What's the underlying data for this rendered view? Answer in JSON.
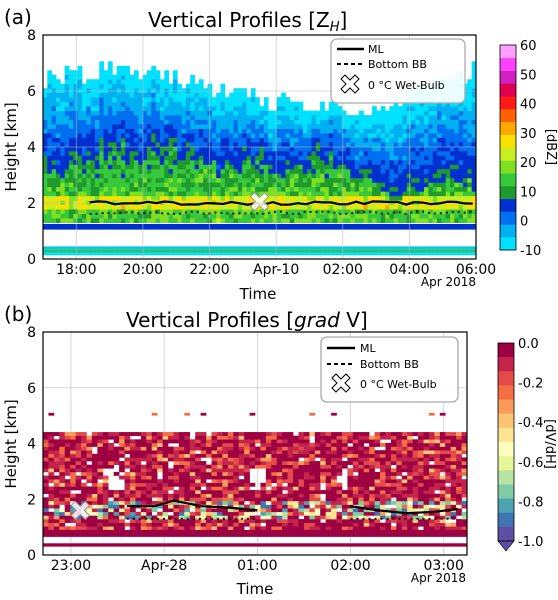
{
  "chart_data": [
    {
      "type": "heatmap",
      "panel_label": "(a)",
      "title_main": "Vertical Profiles ",
      "title_var": "[Z",
      "title_sub": "H",
      "title_close": "]",
      "xlabel": "Time",
      "ylabel": "Height [km]",
      "x_ticks": [
        "18:00",
        "20:00",
        "22:00",
        "Apr-10",
        "02:00",
        "04:00",
        "06:00"
      ],
      "x_tick_hours": [
        18,
        20,
        22,
        24,
        26,
        28,
        30
      ],
      "x_range_hours": [
        17,
        30
      ],
      "x_offset_label": "Apr 2018",
      "y_ticks": [
        0,
        2,
        4,
        6,
        8
      ],
      "ylim": [
        0,
        8
      ],
      "grid": true,
      "legend": {
        "position": "top-right",
        "entries": [
          {
            "label": "ML",
            "style": "solid"
          },
          {
            "label": "Bottom BB",
            "style": "dashed"
          },
          {
            "label": "0 °C Wet-Bulb",
            "style": "cross-marker"
          }
        ]
      },
      "colorbar": {
        "label": "[dBZ]",
        "ticks": [
          "60",
          "50",
          "40",
          "30",
          "20",
          "10",
          "0",
          "-10"
        ],
        "min": -10,
        "max": 60,
        "colors": [
          "#00e0ff",
          "#00b0f0",
          "#0070f0",
          "#0030d0",
          "#1e9a2e",
          "#38c83c",
          "#7ee020",
          "#c8f020",
          "#f8e000",
          "#ffa800",
          "#ff6000",
          "#ff1a1a",
          "#e00050",
          "#d020c0",
          "#ff40ff",
          "#ffa0ff"
        ]
      },
      "ml_line_km": 2.0,
      "bottom_bb_km": 1.65,
      "wet_bulb_marker": {
        "x_hour": 23.5,
        "height_km": 2.05
      },
      "echo_top_km": [
        6.4,
        6.6,
        6.5,
        6.8,
        6.6,
        6.5,
        6.3,
        6.1,
        6.0,
        5.8,
        5.5,
        5.6,
        5.4,
        5.6,
        5.0,
        5.3,
        5.8,
        6.2,
        6.4,
        6.6
      ],
      "strong_echo_top_km": [
        3.0,
        3.2,
        3.4,
        3.8,
        3.5,
        3.9,
        3.6,
        3.2,
        3.0,
        3.4,
        3.0,
        2.8,
        3.6,
        3.3,
        2.6,
        2.4,
        2.2,
        2.4,
        2.6,
        2.8
      ]
    },
    {
      "type": "heatmap",
      "panel_label": "(b)",
      "title_main": "Vertical Profiles ",
      "title_var": "[",
      "title_italic": "grad",
      "title_close": " V]",
      "xlabel": "Time",
      "ylabel": "Height [km]",
      "x_ticks": [
        "23:00",
        "Apr-28",
        "01:00",
        "02:00",
        "03:00"
      ],
      "x_tick_hours": [
        23,
        24,
        25,
        26,
        27
      ],
      "x_range_hours": [
        22.7,
        27.25
      ],
      "x_offset_label": "Apr 2018",
      "y_ticks": [
        0,
        2,
        4,
        6,
        8
      ],
      "ylim": [
        0,
        8
      ],
      "grid": true,
      "legend": {
        "position": "top-right",
        "entries": [
          {
            "label": "ML",
            "style": "solid"
          },
          {
            "label": "Bottom BB",
            "style": "dashed"
          },
          {
            "label": "0 °C Wet-Bulb",
            "style": "cross-marker"
          }
        ]
      },
      "colorbar": {
        "label": "[dV/dH]",
        "ticks": [
          "0.0",
          "-0.2",
          "-0.4",
          "-0.6",
          "-0.8",
          "-1.0"
        ],
        "min": -1.0,
        "max": 0.0,
        "colors": [
          "#9e0142",
          "#c4244c",
          "#e34a4a",
          "#f46d43",
          "#fb9a59",
          "#fdc474",
          "#fee491",
          "#ffffbf",
          "#e6f598",
          "#b9e3a0",
          "#7fcba4",
          "#4ca4b2",
          "#3f75b4",
          "#5e4fa2"
        ]
      },
      "ml_line": {
        "x_hour": [
          23.6,
          23.9,
          24.1,
          24.4,
          24.7,
          25.0,
          26.0,
          26.3,
          26.6,
          26.9,
          27.15
        ],
        "height_km": [
          1.75,
          1.75,
          1.95,
          1.75,
          1.7,
          1.6,
          1.75,
          1.6,
          1.5,
          1.55,
          1.65
        ]
      },
      "bottom_bb_km": 1.3,
      "wet_bulb_marker": {
        "x_hour": 23.1,
        "height_km": 1.6
      }
    }
  ]
}
